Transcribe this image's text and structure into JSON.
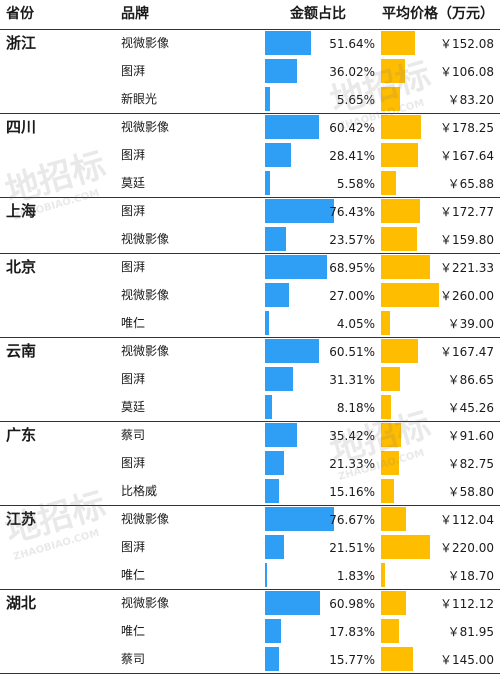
{
  "headers": {
    "province": "省份",
    "brand": "品牌",
    "share": "金额占比",
    "price": "平均价格（万元）"
  },
  "watermark": {
    "text": "地招标",
    "sub": "ZHAOBIAO.COM"
  },
  "colors": {
    "share_bar": "#2f9ff5",
    "price_bar": "#ffbd00"
  },
  "chart_data": {
    "type": "table",
    "columns": [
      "省份",
      "品牌",
      "金额占比",
      "平均价格（万元）"
    ],
    "groups": [
      {
        "province": "浙江",
        "rows": [
          {
            "brand": "视微影像",
            "share": 51.64,
            "share_label": "51.64%",
            "price": 152.08,
            "price_label": "￥152.08"
          },
          {
            "brand": "图湃",
            "share": 36.02,
            "share_label": "36.02%",
            "price": 106.08,
            "price_label": "￥106.08"
          },
          {
            "brand": "新眼光",
            "share": 5.65,
            "share_label": "5.65%",
            "price": 83.2,
            "price_label": "￥83.20"
          }
        ]
      },
      {
        "province": "四川",
        "rows": [
          {
            "brand": "视微影像",
            "share": 60.42,
            "share_label": "60.42%",
            "price": 178.25,
            "price_label": "￥178.25"
          },
          {
            "brand": "图湃",
            "share": 28.41,
            "share_label": "28.41%",
            "price": 167.64,
            "price_label": "￥167.64"
          },
          {
            "brand": "莫廷",
            "share": 5.58,
            "share_label": "5.58%",
            "price": 65.88,
            "price_label": "￥65.88"
          }
        ]
      },
      {
        "province": "上海",
        "rows": [
          {
            "brand": "图湃",
            "share": 76.43,
            "share_label": "76.43%",
            "price": 172.77,
            "price_label": "￥172.77"
          },
          {
            "brand": "视微影像",
            "share": 23.57,
            "share_label": "23.57%",
            "price": 159.8,
            "price_label": "￥159.80"
          }
        ]
      },
      {
        "province": "北京",
        "rows": [
          {
            "brand": "图湃",
            "share": 68.95,
            "share_label": "68.95%",
            "price": 221.33,
            "price_label": "￥221.33"
          },
          {
            "brand": "视微影像",
            "share": 27.0,
            "share_label": "27.00%",
            "price": 260.0,
            "price_label": "￥260.00"
          },
          {
            "brand": "唯仁",
            "share": 4.05,
            "share_label": "4.05%",
            "price": 39.0,
            "price_label": "￥39.00"
          }
        ]
      },
      {
        "province": "云南",
        "rows": [
          {
            "brand": "视微影像",
            "share": 60.51,
            "share_label": "60.51%",
            "price": 167.47,
            "price_label": "￥167.47"
          },
          {
            "brand": "图湃",
            "share": 31.31,
            "share_label": "31.31%",
            "price": 86.65,
            "price_label": "￥86.65"
          },
          {
            "brand": "莫廷",
            "share": 8.18,
            "share_label": "8.18%",
            "price": 45.26,
            "price_label": "￥45.26"
          }
        ]
      },
      {
        "province": "广东",
        "rows": [
          {
            "brand": "蔡司",
            "share": 35.42,
            "share_label": "35.42%",
            "price": 91.6,
            "price_label": "￥91.60"
          },
          {
            "brand": "图湃",
            "share": 21.33,
            "share_label": "21.33%",
            "price": 82.75,
            "price_label": "￥82.75"
          },
          {
            "brand": "比格威",
            "share": 15.16,
            "share_label": "15.16%",
            "price": 58.8,
            "price_label": "￥58.80"
          }
        ]
      },
      {
        "province": "江苏",
        "rows": [
          {
            "brand": "视微影像",
            "share": 76.67,
            "share_label": "76.67%",
            "price": 112.04,
            "price_label": "￥112.04"
          },
          {
            "brand": "图湃",
            "share": 21.51,
            "share_label": "21.51%",
            "price": 220.0,
            "price_label": "￥220.00"
          },
          {
            "brand": "唯仁",
            "share": 1.83,
            "share_label": "1.83%",
            "price": 18.7,
            "price_label": "￥18.70"
          }
        ]
      },
      {
        "province": "湖北",
        "rows": [
          {
            "brand": "视微影像",
            "share": 60.98,
            "share_label": "60.98%",
            "price": 112.12,
            "price_label": "￥112.12"
          },
          {
            "brand": "唯仁",
            "share": 17.83,
            "share_label": "17.83%",
            "price": 81.95,
            "price_label": "￥81.95"
          },
          {
            "brand": "蔡司",
            "share": 15.77,
            "share_label": "15.77%",
            "price": 145.0,
            "price_label": "￥145.00"
          }
        ]
      }
    ]
  }
}
